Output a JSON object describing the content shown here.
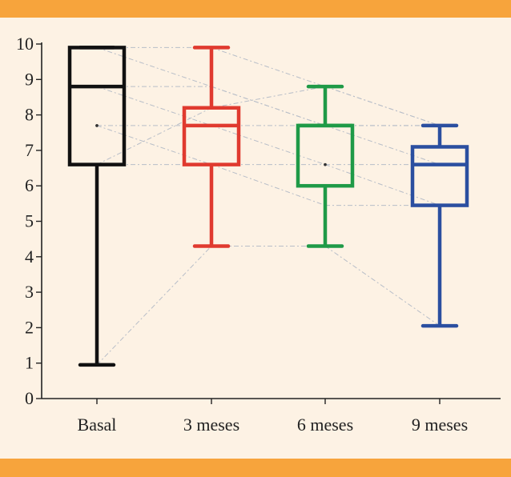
{
  "chart_data": {
    "type": "boxplot",
    "title": "",
    "xlabel": "",
    "ylabel": "",
    "ylim": [
      0,
      10
    ],
    "yticks": [
      0,
      1,
      2,
      3,
      4,
      5,
      6,
      7,
      8,
      9,
      10
    ],
    "grid": false,
    "categories": [
      "Basal",
      "3 meses",
      "6 meses",
      "9 meses"
    ],
    "boxes": [
      {
        "category": "Basal",
        "color": "#111111",
        "min": 0.95,
        "q1": 6.6,
        "median": 8.8,
        "q3": 9.9,
        "max": 9.9
      },
      {
        "category": "3 meses",
        "color": "#e03a2f",
        "min": 4.3,
        "q1": 6.6,
        "median": 7.7,
        "q3": 8.2,
        "max": 9.9
      },
      {
        "category": "6 meses",
        "color": "#1f9a47",
        "min": 4.3,
        "q1": 6.0,
        "median": 7.7,
        "q3": 7.7,
        "max": 8.8
      },
      {
        "category": "9 meses",
        "color": "#2b4fa0",
        "min": 2.05,
        "q1": 5.45,
        "median": 6.6,
        "q3": 7.1,
        "max": 7.7
      }
    ],
    "paired_lines": [
      [
        9.9,
        9.9,
        8.8,
        7.7
      ],
      [
        9.9,
        8.8,
        7.7,
        6.6
      ],
      [
        8.8,
        8.8,
        7.7,
        7.7
      ],
      [
        8.8,
        7.7,
        6.6,
        5.45
      ],
      [
        7.7,
        7.7,
        7.7,
        7.7
      ],
      [
        7.7,
        6.6,
        5.45,
        5.45
      ],
      [
        6.6,
        8.2,
        8.8,
        7.7
      ],
      [
        6.6,
        6.6,
        6.6,
        6.6
      ],
      [
        0.95,
        4.3,
        4.3,
        2.05
      ]
    ],
    "paired_line_color": "#b8bec8"
  }
}
